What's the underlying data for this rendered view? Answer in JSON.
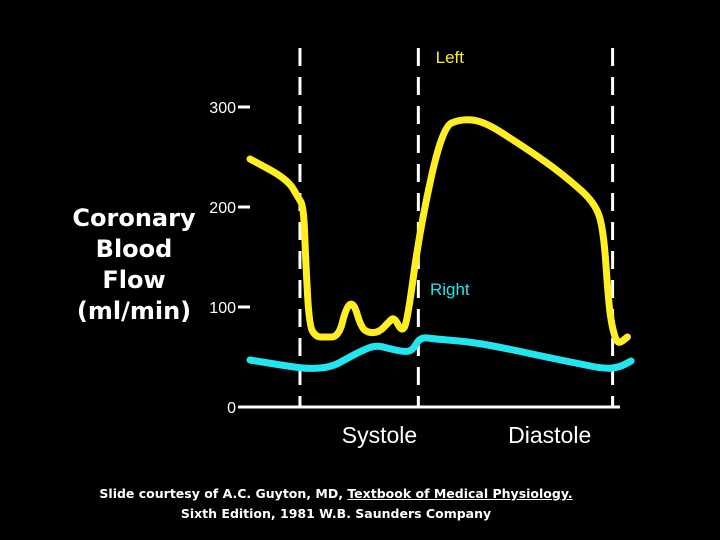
{
  "chart_data": {
    "type": "line",
    "title": "",
    "ylabel_lines": [
      "Coronary",
      "Blood",
      "Flow",
      "(ml/min)"
    ],
    "xlabel": "",
    "ylim": [
      0,
      300
    ],
    "xlim": [
      0,
      10
    ],
    "yticks": [
      0,
      100,
      200,
      300
    ],
    "ytick_labels": [
      "0",
      "100",
      "200",
      "300"
    ],
    "grid": false,
    "phase_boundaries": [
      1.35,
      4.55,
      9.8
    ],
    "phases": [
      {
        "label": "Systole",
        "x_center": 3.5
      },
      {
        "label": "Diastole",
        "x_center": 8.1
      }
    ],
    "colors": {
      "left": "#ffee22",
      "right": "#22e6ee",
      "axis": "#ffffff",
      "background": "#000000"
    },
    "series": [
      {
        "name": "Left",
        "color": "#ffee22",
        "label_pos": [
          5.4,
          350
        ],
        "x": [
          0,
          1.0,
          1.3,
          1.45,
          1.5,
          1.6,
          1.8,
          2.0,
          2.4,
          2.6,
          2.8,
          3.0,
          3.2,
          3.5,
          3.75,
          3.9,
          4.1,
          4.25,
          4.6,
          5.2,
          5.7,
          6.3,
          7.2,
          8.0,
          8.6,
          9.3,
          9.55,
          9.7,
          9.8,
          9.9,
          10.0,
          10.2
        ],
        "y": [
          248,
          228,
          210,
          200,
          150,
          80,
          70,
          70,
          70,
          100,
          105,
          80,
          74,
          75,
          85,
          90,
          75,
          85,
          180,
          280,
          288,
          286,
          265,
          245,
          228,
          205,
          180,
          100,
          78,
          66,
          64,
          70
        ]
      },
      {
        "name": "Right",
        "color": "#22e6ee",
        "label_pos": [
          5.4,
          118
        ],
        "x": [
          0,
          0.5,
          1.0,
          1.6,
          2.2,
          2.6,
          3.0,
          3.4,
          3.8,
          4.2,
          4.4,
          4.6,
          5.0,
          6.0,
          7.0,
          8.0,
          8.8,
          9.6,
          10.0,
          10.3
        ],
        "y": [
          47,
          44,
          41,
          38,
          40,
          48,
          56,
          62,
          58,
          55,
          57,
          70,
          68,
          65,
          58,
          50,
          44,
          38,
          40,
          46
        ]
      }
    ]
  },
  "credit": {
    "prefix": "Slide courtesy of A.C. Guyton, MD, ",
    "book": "Textbook of Medical Physiology.",
    "line2": "Sixth Edition, 1981 W.B. Saunders Company"
  }
}
